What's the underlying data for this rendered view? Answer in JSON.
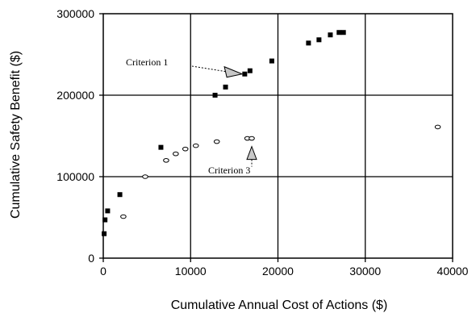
{
  "chart_data": {
    "type": "scatter",
    "title": "",
    "xlabel": "Cumulative Annual Cost of Actions ($)",
    "ylabel": "Cumulative Safety Benefit ($)",
    "xlim": [
      0,
      40000
    ],
    "ylim": [
      0,
      300000
    ],
    "x_ticks": [
      0,
      10000,
      20000,
      30000,
      40000
    ],
    "y_ticks": [
      0,
      100000,
      200000,
      300000
    ],
    "grid": true,
    "series": [
      {
        "marker": "filled-square",
        "color": "#000000",
        "points": [
          [
            100,
            30000
          ],
          [
            200,
            47000
          ],
          [
            500,
            58000
          ],
          [
            1900,
            78000
          ],
          [
            6600,
            136000
          ],
          [
            12800,
            200000
          ],
          [
            14000,
            210000
          ],
          [
            16200,
            226000
          ],
          [
            16800,
            230000
          ],
          [
            19300,
            242000
          ],
          [
            23500,
            264000
          ],
          [
            24700,
            268000
          ],
          [
            26000,
            274000
          ],
          [
            27000,
            277000
          ],
          [
            27500,
            277000
          ]
        ]
      },
      {
        "marker": "open-circle",
        "color": "#000000",
        "points": [
          [
            2300,
            51000
          ],
          [
            4800,
            100000
          ],
          [
            7200,
            120000
          ],
          [
            8300,
            128000
          ],
          [
            9400,
            134000
          ],
          [
            10600,
            138000
          ],
          [
            13000,
            143000
          ],
          [
            16500,
            147000
          ],
          [
            17000,
            147000
          ],
          [
            38300,
            161000
          ]
        ]
      }
    ],
    "annotations": [
      {
        "text": "Criterion 1",
        "target": [
          15900,
          226000
        ]
      },
      {
        "text": "Criterion 3",
        "target": [
          17000,
          137000
        ]
      }
    ]
  }
}
